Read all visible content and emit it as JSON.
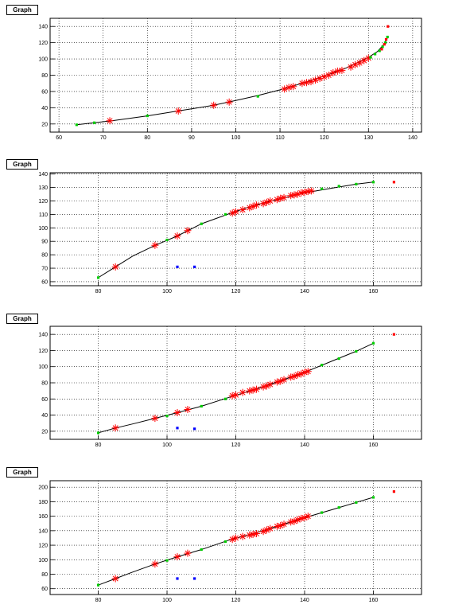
{
  "chart_data": [
    {
      "type": "scatter",
      "title": "Graph",
      "xlim": [
        58,
        142
      ],
      "ylim": [
        10,
        150
      ],
      "xticks": [
        60,
        70,
        80,
        90,
        100,
        110,
        120,
        130,
        140
      ],
      "yticks": [
        20,
        40,
        60,
        80,
        100,
        120,
        140
      ],
      "grid": true,
      "series": [
        {
          "marker": "star",
          "color": "#ff0000",
          "x": [
            71.5,
            87,
            95,
            98.5,
            111,
            112,
            113,
            115,
            116,
            117,
            118,
            119,
            120,
            121,
            122,
            123,
            124,
            126,
            127,
            128,
            129,
            130
          ],
          "y": [
            24,
            36,
            43,
            47,
            63,
            65,
            66,
            70,
            71,
            72,
            74,
            76,
            78,
            80,
            83,
            85,
            86,
            90,
            93,
            95,
            98,
            101
          ]
        },
        {
          "marker": "square",
          "color": "#00cc00",
          "x": [
            64,
            68,
            80,
            105,
            130.5,
            131.5,
            132.5,
            133.2,
            133.8,
            134.3
          ],
          "y": [
            19,
            21.5,
            30,
            54,
            102,
            106,
            110,
            115,
            120,
            127
          ]
        },
        {
          "marker": "square",
          "color": "#ff0000",
          "x": [
            133,
            133.6,
            134,
            134.4
          ],
          "y": [
            112,
            118,
            124,
            140
          ]
        }
      ],
      "fit": {
        "x": [
          64,
          72,
          80,
          87,
          95,
          100,
          105,
          110,
          115,
          120,
          125,
          130,
          132,
          133.5,
          134.5
        ],
        "y": [
          19,
          24,
          30,
          36,
          43,
          49,
          55,
          62,
          70,
          79,
          89,
          102,
          109,
          118,
          128
        ]
      }
    },
    {
      "type": "scatter",
      "title": "Graph",
      "xlim": [
        66,
        174
      ],
      "ylim": [
        57,
        141
      ],
      "xticks": [
        80,
        100,
        120,
        140,
        160
      ],
      "yticks": [
        60,
        70,
        80,
        90,
        100,
        110,
        120,
        130,
        140
      ],
      "grid": true,
      "series": [
        {
          "marker": "star",
          "color": "#ff0000",
          "x": [
            85,
            96.5,
            103,
            106,
            119,
            120,
            122,
            124,
            125,
            126,
            128,
            129,
            130,
            132,
            133,
            134,
            136,
            137,
            138,
            139,
            140,
            141,
            142
          ],
          "y": [
            71,
            87,
            94,
            98,
            111,
            112,
            113.5,
            115,
            116,
            117,
            118,
            119,
            120,
            121,
            122,
            122.5,
            124,
            124.5,
            125,
            126,
            126.5,
            127,
            127.5
          ]
        },
        {
          "marker": "square",
          "color": "#00cc00",
          "x": [
            80,
            100,
            110,
            117,
            145,
            150,
            155,
            160
          ],
          "y": [
            63,
            91,
            103,
            110,
            129,
            131,
            132.5,
            134
          ]
        },
        {
          "marker": "square",
          "color": "#ff0000",
          "x": [
            166
          ],
          "y": [
            134
          ]
        },
        {
          "marker": "square",
          "color": "#0000ff",
          "x": [
            103,
            108
          ],
          "y": [
            71,
            71
          ]
        }
      ],
      "fit": {
        "x": [
          80,
          85,
          90,
          96.5,
          103,
          110,
          118,
          125,
          132,
          140,
          148,
          155,
          160
        ],
        "y": [
          63,
          71,
          79,
          87,
          94,
          103,
          110.5,
          116.5,
          121,
          126,
          129.5,
          132.5,
          134
        ]
      }
    },
    {
      "type": "scatter",
      "title": "Graph",
      "xlim": [
        66,
        174
      ],
      "ylim": [
        10,
        150
      ],
      "xticks": [
        80,
        100,
        120,
        140,
        160
      ],
      "yticks": [
        20,
        40,
        60,
        80,
        100,
        120,
        140
      ],
      "grid": true,
      "series": [
        {
          "marker": "star",
          "color": "#ff0000",
          "x": [
            85,
            96.5,
            103,
            106,
            119,
            120,
            122,
            124,
            125,
            126,
            128,
            129,
            130,
            132,
            133,
            134,
            136,
            137,
            138,
            139,
            140,
            141
          ],
          "y": [
            24,
            36,
            43,
            47,
            64,
            65,
            68,
            70,
            71,
            72,
            75,
            76,
            78,
            81,
            82,
            84,
            87,
            88,
            90,
            91,
            93,
            94
          ]
        },
        {
          "marker": "square",
          "color": "#00cc00",
          "x": [
            80,
            100,
            110,
            117,
            145,
            150,
            155,
            160
          ],
          "y": [
            18,
            39,
            51,
            60,
            102,
            110,
            119,
            129
          ]
        },
        {
          "marker": "square",
          "color": "#ff0000",
          "x": [
            166
          ],
          "y": [
            140
          ]
        },
        {
          "marker": "square",
          "color": "#0000ff",
          "x": [
            103,
            108
          ],
          "y": [
            24,
            23
          ]
        }
      ],
      "fit": {
        "x": [
          80,
          85,
          90,
          96.5,
          103,
          110,
          118,
          125,
          132,
          140,
          148,
          155,
          160
        ],
        "y": [
          18,
          24,
          29,
          36,
          43,
          51,
          62,
          71,
          81,
          93,
          107,
          119,
          129
        ]
      }
    },
    {
      "type": "scatter",
      "title": "Graph",
      "xlim": [
        66,
        174
      ],
      "ylim": [
        52,
        209
      ],
      "xticks": [
        80,
        100,
        120,
        140,
        160
      ],
      "yticks": [
        60,
        80,
        100,
        120,
        140,
        160,
        180,
        200
      ],
      "grid": true,
      "series": [
        {
          "marker": "star",
          "color": "#ff0000",
          "x": [
            85,
            96.5,
            103,
            106,
            119,
            120,
            122,
            124,
            125,
            126,
            128,
            129,
            130,
            132,
            133,
            134,
            136,
            137,
            138,
            139,
            140,
            141
          ],
          "y": [
            74,
            94,
            104,
            109,
            128,
            130,
            132,
            134,
            135,
            136,
            139,
            141,
            143,
            146,
            147,
            149,
            152,
            153,
            155,
            157,
            158,
            160
          ]
        },
        {
          "marker": "square",
          "color": "#00cc00",
          "x": [
            80,
            100,
            110,
            117,
            145,
            150,
            155,
            160
          ],
          "y": [
            65,
            99,
            114,
            125,
            165,
            172,
            179,
            186
          ]
        },
        {
          "marker": "square",
          "color": "#ff0000",
          "x": [
            166
          ],
          "y": [
            194
          ]
        },
        {
          "marker": "square",
          "color": "#0000ff",
          "x": [
            103,
            108
          ],
          "y": [
            74,
            74
          ]
        }
      ],
      "fit": {
        "x": [
          80,
          85,
          90,
          96.5,
          103,
          110,
          118,
          125,
          132,
          140,
          148,
          155,
          160
        ],
        "y": [
          65,
          74,
          83,
          94,
          104,
          114,
          127,
          136,
          146,
          158,
          169,
          179,
          186
        ]
      }
    }
  ]
}
